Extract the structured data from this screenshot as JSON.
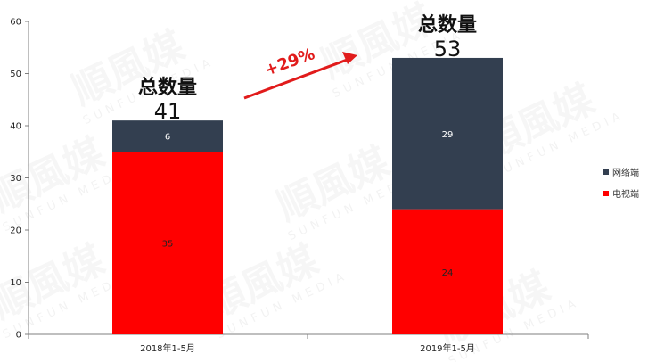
{
  "watermark": {
    "brand_cn": "順風媒",
    "brand_en": "SUNFUN MEDIA"
  },
  "chart_data": {
    "type": "bar",
    "stacked": true,
    "categories": [
      "2018年1-5月",
      "2019年1-5月"
    ],
    "series": [
      {
        "name": "电视端",
        "values": [
          35,
          24
        ],
        "color": "#ff0000",
        "label_color": "#222222"
      },
      {
        "name": "网络端",
        "values": [
          6,
          29
        ],
        "color": "#333f50",
        "label_color": "#ffffff"
      }
    ],
    "totals": {
      "title": "总数量",
      "values": [
        41,
        53
      ]
    },
    "annotation": {
      "text": "+29%",
      "color": "#e11b1b"
    },
    "ylim": [
      0,
      60
    ],
    "yticks": [
      0,
      10,
      20,
      30,
      40,
      50,
      60
    ],
    "grid": false,
    "legend": "right"
  }
}
